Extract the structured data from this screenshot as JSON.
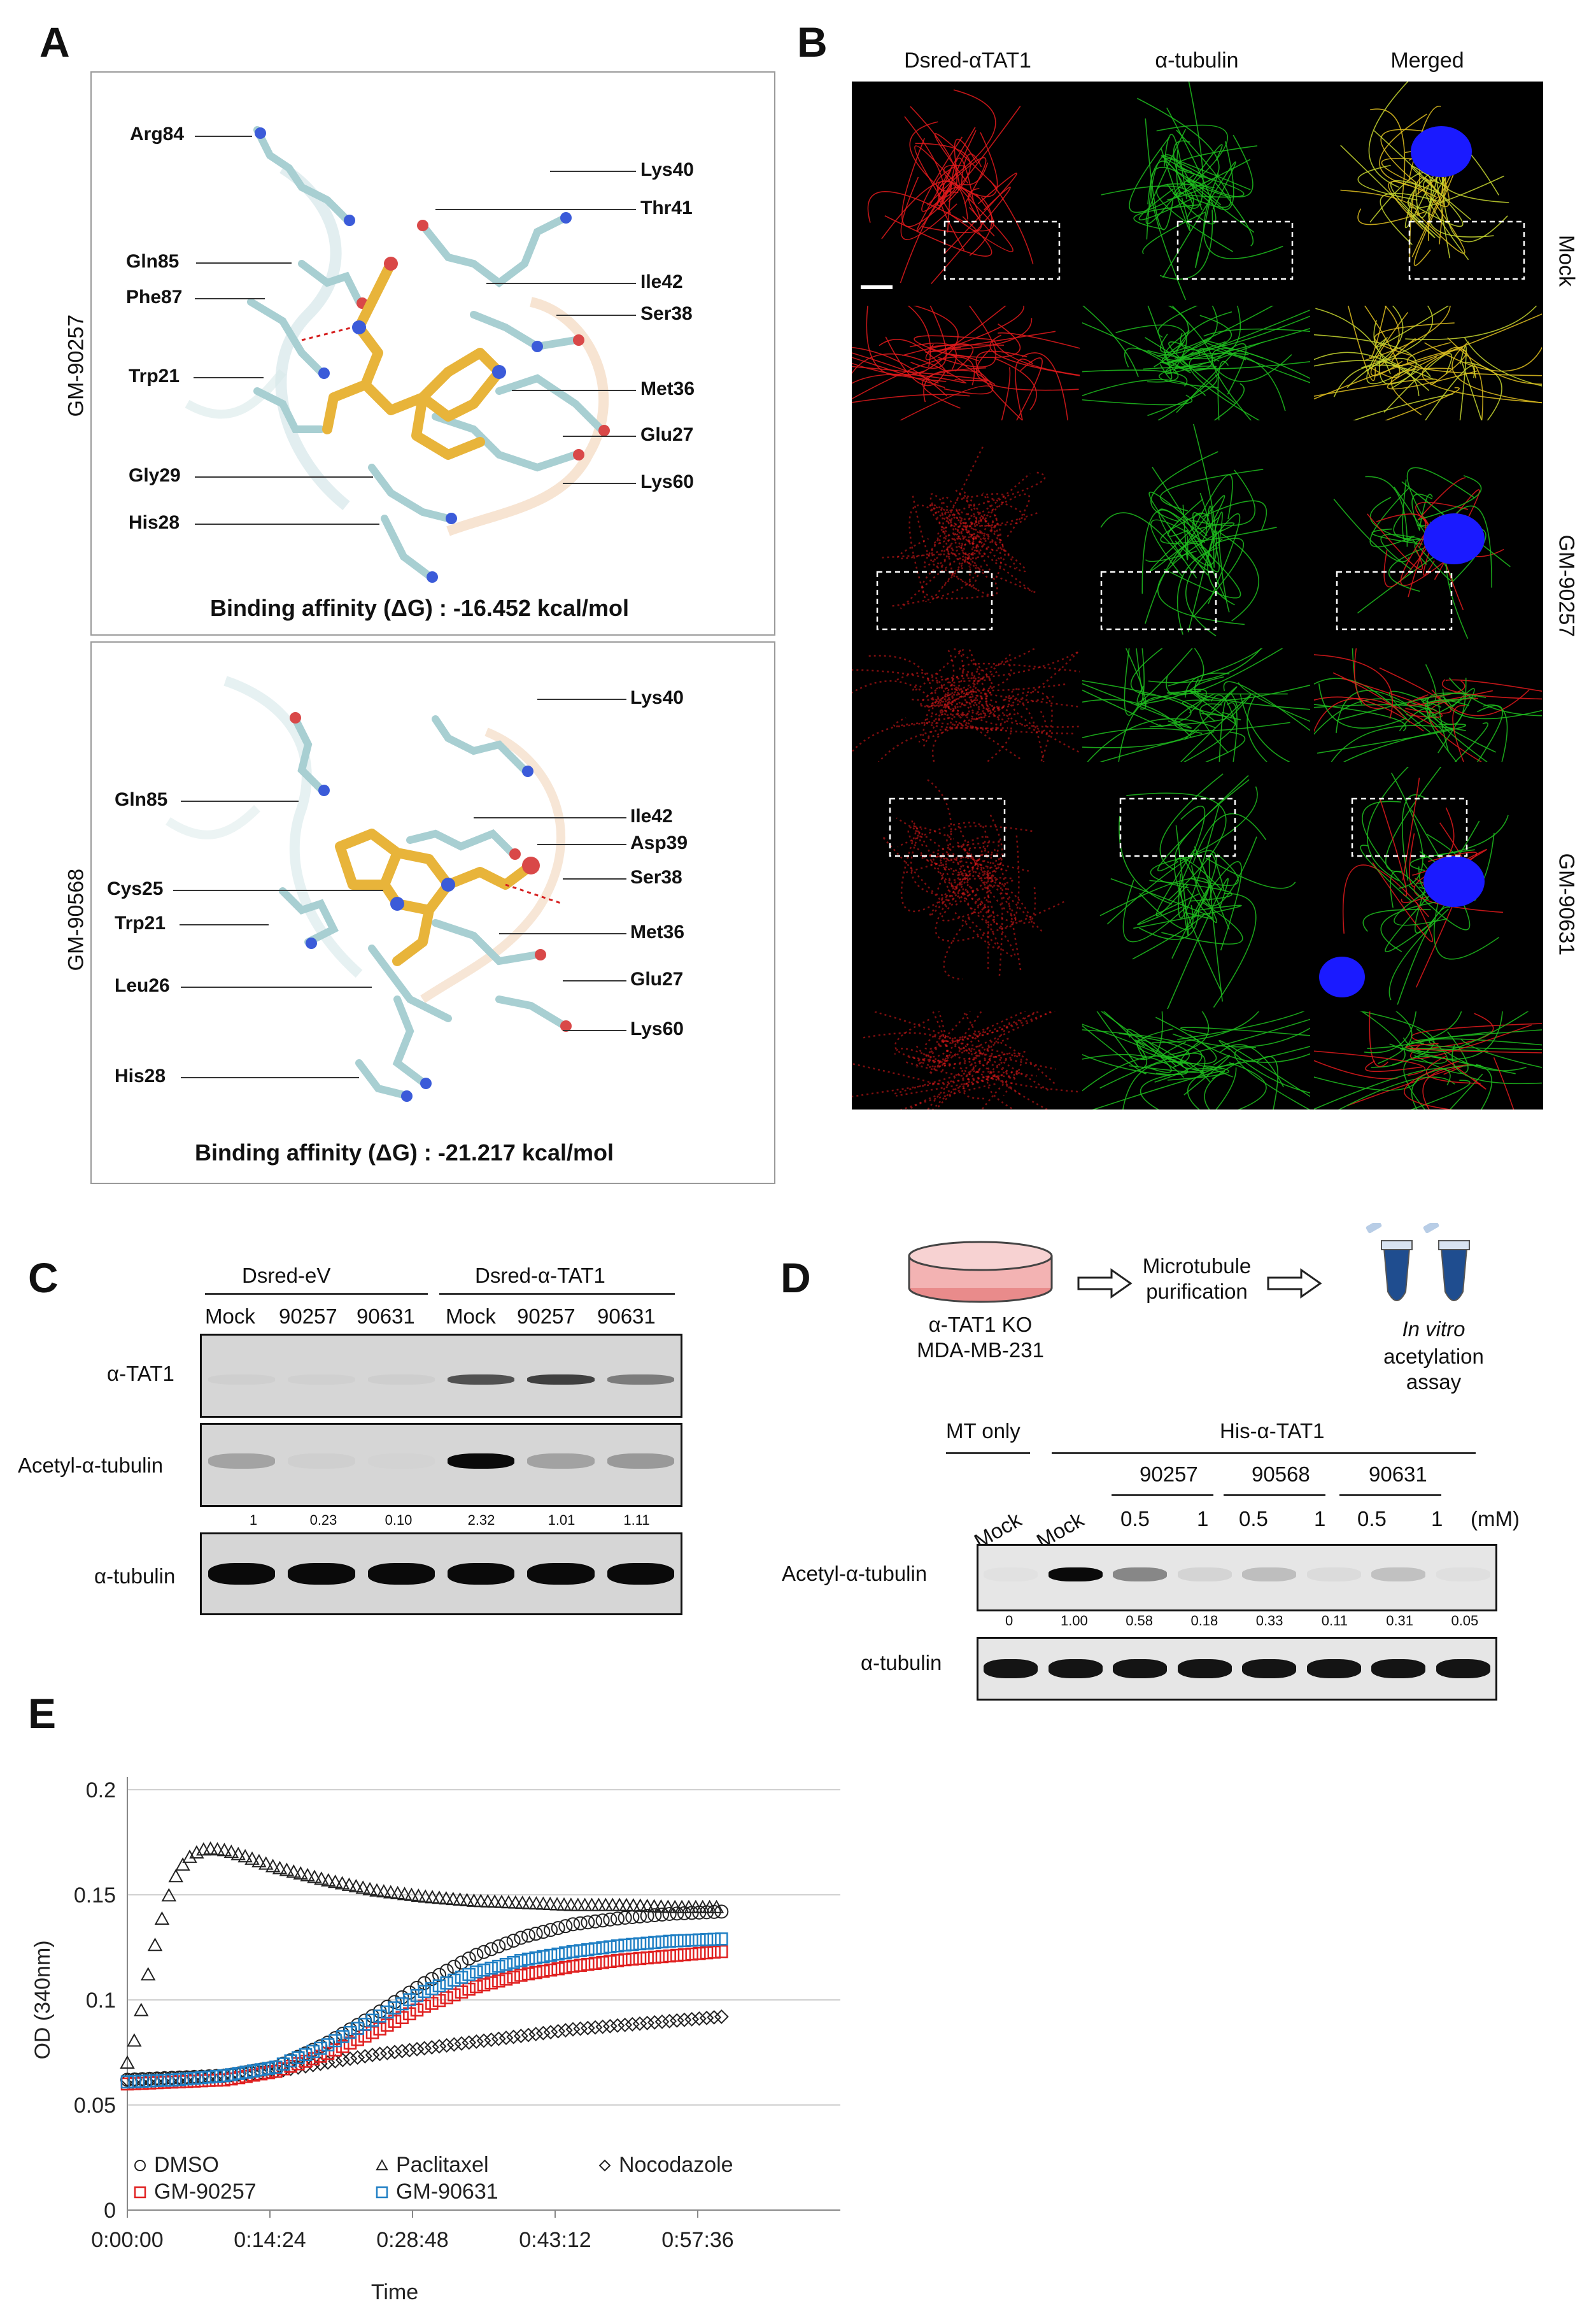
{
  "panel_a": {
    "letter": "A",
    "top": {
      "compound": "GM-90257",
      "residues": [
        "Arg84",
        "Gln85",
        "Phe87",
        "Trp21",
        "Gly29",
        "His28",
        "Lys40",
        "Thr41",
        "Ile42",
        "Ser38",
        "Met36",
        "Glu27",
        "Lys60"
      ],
      "affinity": "Binding affinity (ΔG) : -16.452 kcal/mol"
    },
    "bottom": {
      "compound": "GM-90568",
      "residues": [
        "Gln85",
        "Cys25",
        "Trp21",
        "Leu26",
        "His28",
        "Lys40",
        "Ile42",
        "Asp39",
        "Ser38",
        "Met36",
        "Glu27",
        "Lys60"
      ],
      "affinity": "Binding affinity (ΔG) : -21.217 kcal/mol"
    }
  },
  "panel_b": {
    "letter": "B",
    "columns": [
      "Dsred-αTAT1",
      "α-tubulin",
      "Merged"
    ],
    "rows": [
      "Mock",
      "GM-90257",
      "GM-90631"
    ]
  },
  "panel_c": {
    "letter": "C",
    "groups": [
      "Dsred-eV",
      "Dsred-α-TAT1"
    ],
    "lanes": [
      "Mock",
      "90257",
      "90631",
      "Mock",
      "90257",
      "90631"
    ],
    "blots": [
      "α-TAT1",
      "Acetyl-α-tubulin",
      "α-tubulin"
    ],
    "quant": [
      "1",
      "0.23",
      "0.10",
      "2.32",
      "1.01",
      "1.11"
    ]
  },
  "panel_d": {
    "letter": "D",
    "schematic": {
      "cell_line": "α-TAT1 KO\nMDA-MB-231",
      "step2": "Microtubule\npurification",
      "step3_italic": "In vitro",
      "step3_rest": "acetylation\nassay"
    },
    "header_left": "MT only",
    "header_right": "His-α-TAT1",
    "compounds": [
      "90257",
      "90568",
      "90631"
    ],
    "lanes": [
      "Mock",
      "Mock",
      "0.5",
      "1",
      "0.5",
      "1",
      "0.5",
      "1"
    ],
    "unit": "(mM)",
    "blots": [
      "Acetyl-α-tubulin",
      "α-tubulin"
    ],
    "quant": [
      "0",
      "1.00",
      "0.58",
      "0.18",
      "0.33",
      "0.11",
      "0.31",
      "0.05"
    ]
  },
  "panel_e": {
    "letter": "E",
    "chart_data": {
      "type": "scatter",
      "ylabel": "OD (340nm)",
      "xlabel": "Time",
      "x_ticks": [
        "0:00:00",
        "0:14:24",
        "0:28:48",
        "0:43:12",
        "0:57:36"
      ],
      "y_ticks": [
        "0",
        "0.05",
        "0.1",
        "0.15",
        "0.2"
      ],
      "xlim_minutes": [
        0,
        72
      ],
      "ylim": [
        0,
        0.2
      ],
      "grid": "horizontal",
      "legend_position": "bottom-left",
      "series": [
        {
          "name": "DMSO",
          "marker": "circle",
          "color": "#222222",
          "x": [
            0,
            5,
            10,
            15,
            20,
            25,
            30,
            35,
            40,
            45,
            50,
            55,
            60
          ],
          "y": [
            0.062,
            0.063,
            0.064,
            0.068,
            0.079,
            0.093,
            0.108,
            0.121,
            0.13,
            0.136,
            0.139,
            0.141,
            0.142
          ]
        },
        {
          "name": "Paclitaxel",
          "marker": "triangle",
          "color": "#222222",
          "x": [
            0,
            1,
            2,
            3,
            4,
            5,
            6,
            7,
            8,
            10,
            12,
            15,
            20,
            25,
            30,
            35,
            40,
            45,
            50,
            55,
            60
          ],
          "y": [
            0.07,
            0.085,
            0.11,
            0.13,
            0.147,
            0.16,
            0.167,
            0.17,
            0.172,
            0.171,
            0.168,
            0.163,
            0.157,
            0.152,
            0.149,
            0.147,
            0.146,
            0.145,
            0.145,
            0.144,
            0.144
          ]
        },
        {
          "name": "Nocodazole",
          "marker": "diamond",
          "color": "#222222",
          "x": [
            0,
            5,
            10,
            15,
            20,
            25,
            30,
            35,
            40,
            45,
            50,
            55,
            60
          ],
          "y": [
            0.062,
            0.063,
            0.064,
            0.066,
            0.07,
            0.074,
            0.077,
            0.08,
            0.083,
            0.086,
            0.088,
            0.09,
            0.092
          ]
        },
        {
          "name": "GM-90257",
          "marker": "square",
          "color": "#e02020",
          "x": [
            0,
            5,
            10,
            15,
            20,
            25,
            30,
            35,
            40,
            45,
            50,
            55,
            60
          ],
          "y": [
            0.06,
            0.061,
            0.062,
            0.066,
            0.074,
            0.085,
            0.097,
            0.106,
            0.112,
            0.116,
            0.119,
            0.121,
            0.123
          ]
        },
        {
          "name": "GM-90631",
          "marker": "square",
          "color": "#1f7fc4",
          "x": [
            0,
            5,
            10,
            15,
            20,
            25,
            30,
            35,
            40,
            45,
            50,
            55,
            60
          ],
          "y": [
            0.061,
            0.062,
            0.064,
            0.068,
            0.078,
            0.091,
            0.104,
            0.113,
            0.119,
            0.123,
            0.126,
            0.128,
            0.129
          ]
        }
      ]
    }
  },
  "colors": {
    "red": "#e31a1c",
    "green": "#1ec01e",
    "blue": "#1a1aff",
    "ligand": "#e8b43a"
  }
}
